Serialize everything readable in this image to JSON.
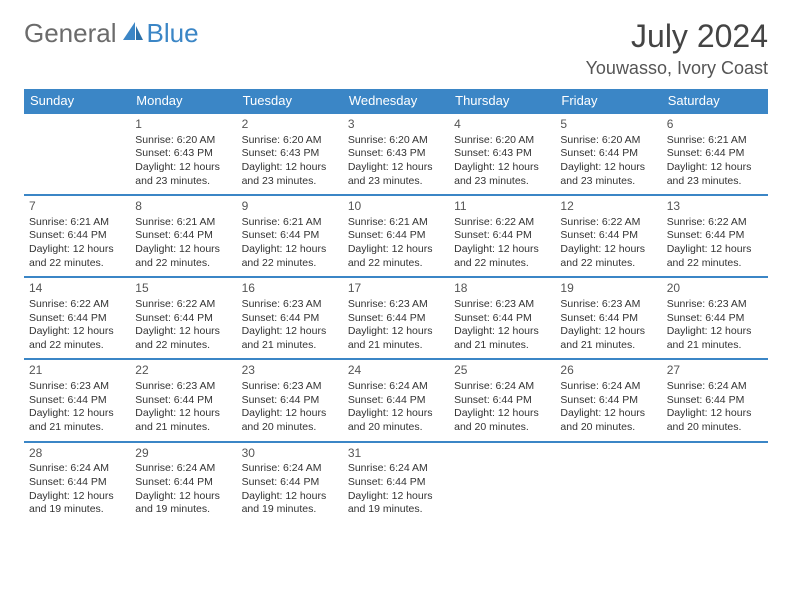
{
  "logo": {
    "textA": "General",
    "textB": "Blue",
    "textColorA": "#6b6b6b",
    "textColorB": "#3b86c6",
    "iconColor": "#3b86c6"
  },
  "title": "July 2024",
  "location": "Youwasso, Ivory Coast",
  "colors": {
    "headerBg": "#3b86c6",
    "headerText": "#ffffff",
    "rowBorder": "#3b86c6",
    "pageBg": "#ffffff",
    "text": "#333333",
    "dayNum": "#555555"
  },
  "days": [
    "Sunday",
    "Monday",
    "Tuesday",
    "Wednesday",
    "Thursday",
    "Friday",
    "Saturday"
  ],
  "calendar": {
    "type": "table",
    "columns": 7,
    "startWeekday": 1,
    "daysInMonth": 31,
    "cells": [
      {
        "d": 1,
        "sunrise": "6:20 AM",
        "sunset": "6:43 PM",
        "daylight": "12 hours and 23 minutes."
      },
      {
        "d": 2,
        "sunrise": "6:20 AM",
        "sunset": "6:43 PM",
        "daylight": "12 hours and 23 minutes."
      },
      {
        "d": 3,
        "sunrise": "6:20 AM",
        "sunset": "6:43 PM",
        "daylight": "12 hours and 23 minutes."
      },
      {
        "d": 4,
        "sunrise": "6:20 AM",
        "sunset": "6:43 PM",
        "daylight": "12 hours and 23 minutes."
      },
      {
        "d": 5,
        "sunrise": "6:20 AM",
        "sunset": "6:44 PM",
        "daylight": "12 hours and 23 minutes."
      },
      {
        "d": 6,
        "sunrise": "6:21 AM",
        "sunset": "6:44 PM",
        "daylight": "12 hours and 23 minutes."
      },
      {
        "d": 7,
        "sunrise": "6:21 AM",
        "sunset": "6:44 PM",
        "daylight": "12 hours and 22 minutes."
      },
      {
        "d": 8,
        "sunrise": "6:21 AM",
        "sunset": "6:44 PM",
        "daylight": "12 hours and 22 minutes."
      },
      {
        "d": 9,
        "sunrise": "6:21 AM",
        "sunset": "6:44 PM",
        "daylight": "12 hours and 22 minutes."
      },
      {
        "d": 10,
        "sunrise": "6:21 AM",
        "sunset": "6:44 PM",
        "daylight": "12 hours and 22 minutes."
      },
      {
        "d": 11,
        "sunrise": "6:22 AM",
        "sunset": "6:44 PM",
        "daylight": "12 hours and 22 minutes."
      },
      {
        "d": 12,
        "sunrise": "6:22 AM",
        "sunset": "6:44 PM",
        "daylight": "12 hours and 22 minutes."
      },
      {
        "d": 13,
        "sunrise": "6:22 AM",
        "sunset": "6:44 PM",
        "daylight": "12 hours and 22 minutes."
      },
      {
        "d": 14,
        "sunrise": "6:22 AM",
        "sunset": "6:44 PM",
        "daylight": "12 hours and 22 minutes."
      },
      {
        "d": 15,
        "sunrise": "6:22 AM",
        "sunset": "6:44 PM",
        "daylight": "12 hours and 22 minutes."
      },
      {
        "d": 16,
        "sunrise": "6:23 AM",
        "sunset": "6:44 PM",
        "daylight": "12 hours and 21 minutes."
      },
      {
        "d": 17,
        "sunrise": "6:23 AM",
        "sunset": "6:44 PM",
        "daylight": "12 hours and 21 minutes."
      },
      {
        "d": 18,
        "sunrise": "6:23 AM",
        "sunset": "6:44 PM",
        "daylight": "12 hours and 21 minutes."
      },
      {
        "d": 19,
        "sunrise": "6:23 AM",
        "sunset": "6:44 PM",
        "daylight": "12 hours and 21 minutes."
      },
      {
        "d": 20,
        "sunrise": "6:23 AM",
        "sunset": "6:44 PM",
        "daylight": "12 hours and 21 minutes."
      },
      {
        "d": 21,
        "sunrise": "6:23 AM",
        "sunset": "6:44 PM",
        "daylight": "12 hours and 21 minutes."
      },
      {
        "d": 22,
        "sunrise": "6:23 AM",
        "sunset": "6:44 PM",
        "daylight": "12 hours and 21 minutes."
      },
      {
        "d": 23,
        "sunrise": "6:23 AM",
        "sunset": "6:44 PM",
        "daylight": "12 hours and 20 minutes."
      },
      {
        "d": 24,
        "sunrise": "6:24 AM",
        "sunset": "6:44 PM",
        "daylight": "12 hours and 20 minutes."
      },
      {
        "d": 25,
        "sunrise": "6:24 AM",
        "sunset": "6:44 PM",
        "daylight": "12 hours and 20 minutes."
      },
      {
        "d": 26,
        "sunrise": "6:24 AM",
        "sunset": "6:44 PM",
        "daylight": "12 hours and 20 minutes."
      },
      {
        "d": 27,
        "sunrise": "6:24 AM",
        "sunset": "6:44 PM",
        "daylight": "12 hours and 20 minutes."
      },
      {
        "d": 28,
        "sunrise": "6:24 AM",
        "sunset": "6:44 PM",
        "daylight": "12 hours and 19 minutes."
      },
      {
        "d": 29,
        "sunrise": "6:24 AM",
        "sunset": "6:44 PM",
        "daylight": "12 hours and 19 minutes."
      },
      {
        "d": 30,
        "sunrise": "6:24 AM",
        "sunset": "6:44 PM",
        "daylight": "12 hours and 19 minutes."
      },
      {
        "d": 31,
        "sunrise": "6:24 AM",
        "sunset": "6:44 PM",
        "daylight": "12 hours and 19 minutes."
      }
    ]
  },
  "labels": {
    "sunrise": "Sunrise:",
    "sunset": "Sunset:",
    "daylight": "Daylight:"
  }
}
